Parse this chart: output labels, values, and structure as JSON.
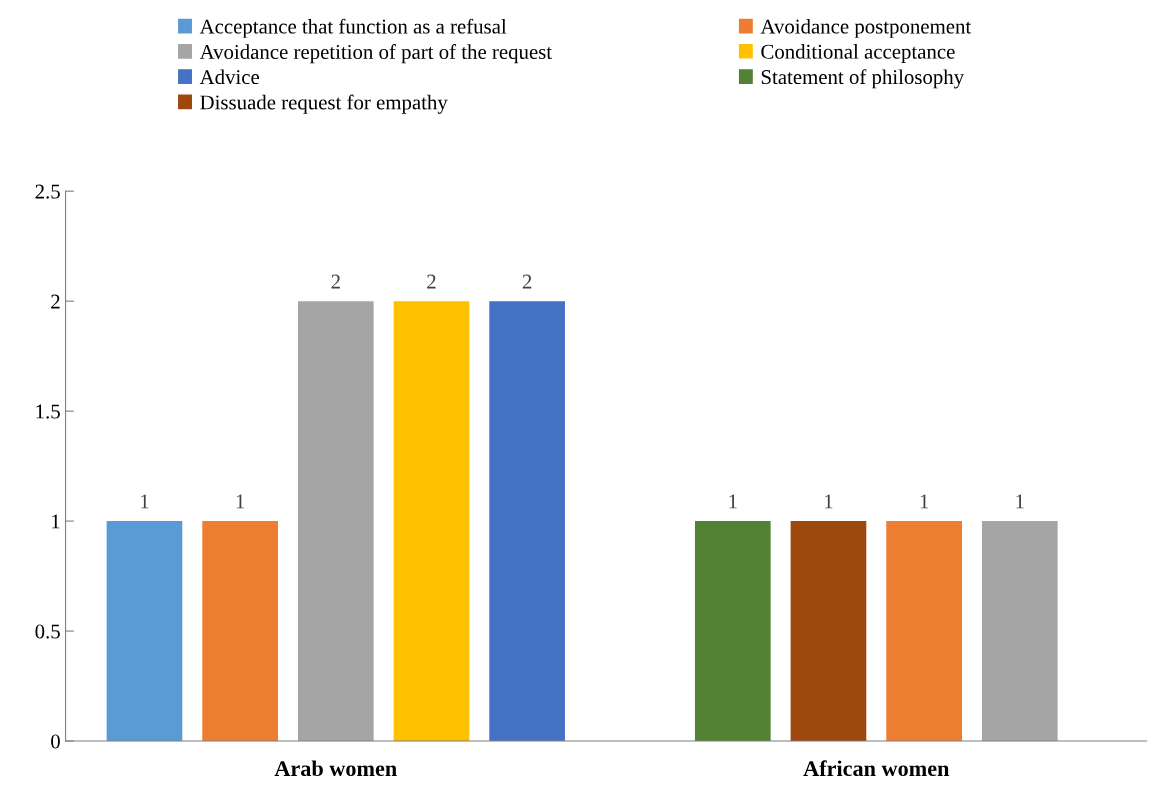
{
  "chart_data": {
    "type": "bar",
    "categories": [
      "Arab women",
      "African women"
    ],
    "series": [
      {
        "name": "Acceptance that function as a refusal",
        "color": "#5b9bd5",
        "values": [
          1,
          null
        ]
      },
      {
        "name": "Avoidance postponement",
        "color": "#ed7d31",
        "values": [
          1,
          null
        ]
      },
      {
        "name": "Avoidance repetition of part of the request",
        "color": "#a5a5a5",
        "values": [
          2,
          null
        ]
      },
      {
        "name": "Conditional acceptance",
        "color": "#ffc000",
        "values": [
          2,
          null
        ]
      },
      {
        "name": "Advice",
        "color": "#4472c4",
        "values": [
          2,
          null
        ]
      },
      {
        "name": "Statement of philosophy",
        "color": "#548235",
        "values": [
          null,
          1
        ]
      },
      {
        "name": "Dissuade request for empathy",
        "color": "#9e480e",
        "values": [
          null,
          1
        ]
      },
      {
        "color": "#ed7d31",
        "values": [
          null,
          1
        ]
      },
      {
        "color": "#a5a5a5",
        "values": [
          null,
          1
        ]
      }
    ],
    "ylim": [
      0,
      2.5
    ],
    "yticks": [
      0,
      0.5,
      1,
      1.5,
      2,
      2.5
    ],
    "data_labels": true,
    "grid": false,
    "legend": "top"
  }
}
